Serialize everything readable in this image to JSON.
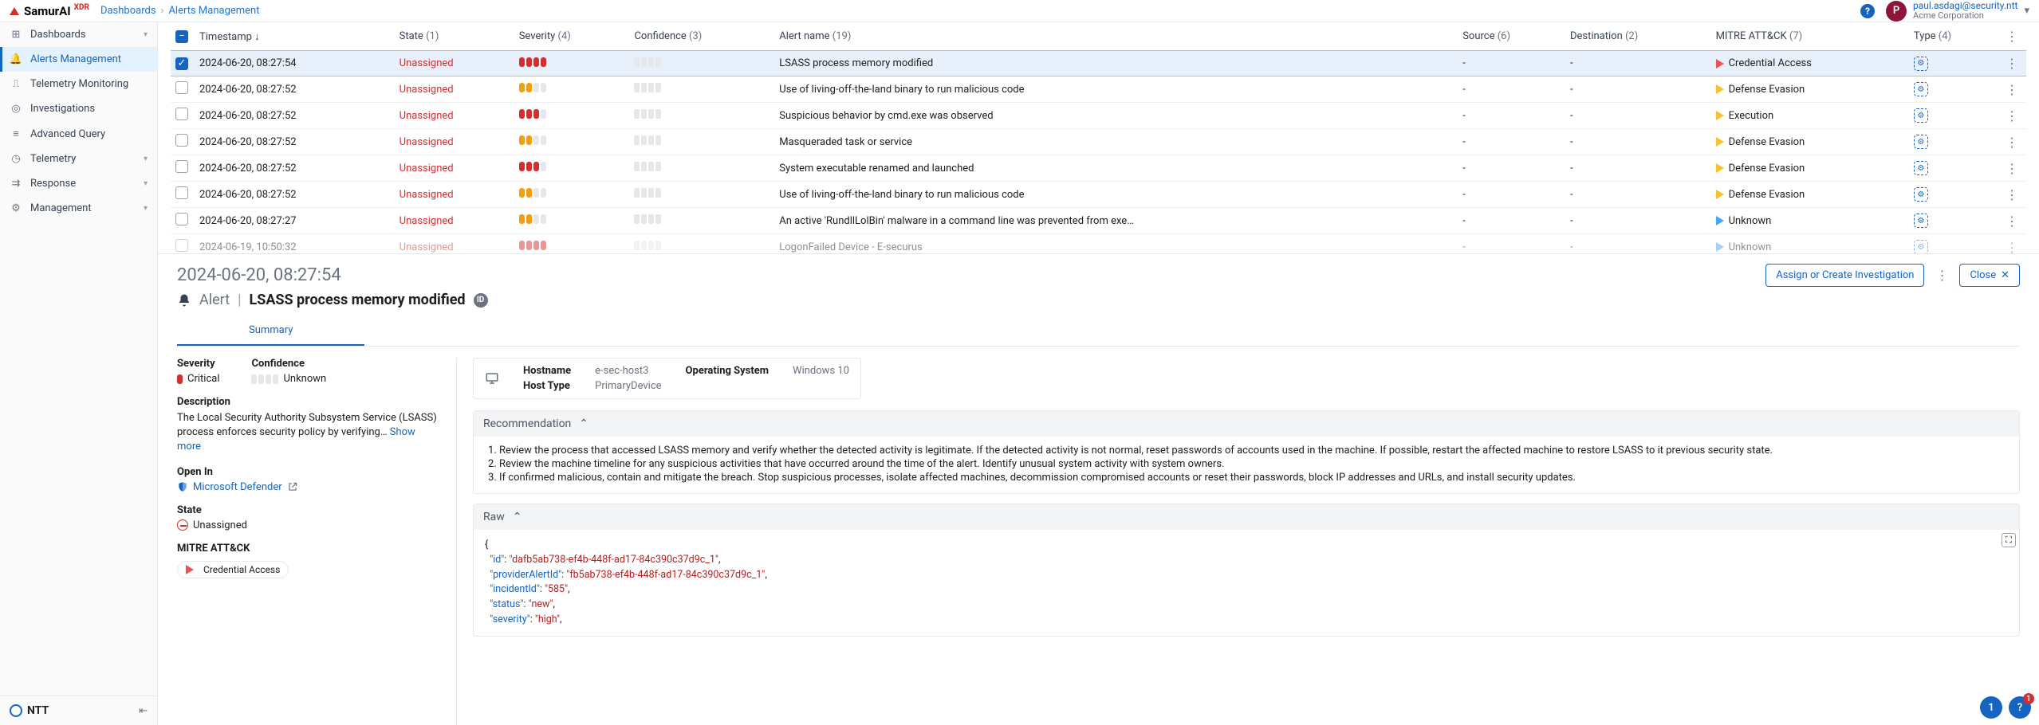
{
  "brand": {
    "name": "SamurAI",
    "suffix": "XDR"
  },
  "crumbs": [
    "Dashboards",
    "Alerts Management"
  ],
  "user": {
    "initial": "P",
    "email": "paul.asdagi@security.ntt",
    "org": "Acme Corporation"
  },
  "sidebar": [
    {
      "label": "Dashboards",
      "icon": "grid",
      "exp": true
    },
    {
      "label": "Alerts Management",
      "icon": "bell",
      "active": true
    },
    {
      "label": "Telemetry Monitoring",
      "icon": "pulse"
    },
    {
      "label": "Investigations",
      "icon": "target"
    },
    {
      "label": "Advanced Query",
      "icon": "db"
    },
    {
      "label": "Telemetry",
      "icon": "gauge",
      "exp": true
    },
    {
      "label": "Response",
      "icon": "flow",
      "exp": true
    },
    {
      "label": "Management",
      "icon": "gear",
      "exp": true
    }
  ],
  "footer_brand": "NTT",
  "columns": [
    {
      "label": "Timestamp",
      "count": null,
      "sort": true
    },
    {
      "label": "State",
      "count": 1
    },
    {
      "label": "Severity",
      "count": 4
    },
    {
      "label": "Confidence",
      "count": 3
    },
    {
      "label": "Alert name",
      "count": 19
    },
    {
      "label": "Source",
      "count": 6
    },
    {
      "label": "Destination",
      "count": 2
    },
    {
      "label": "MITRE ATT&CK",
      "count": 7
    },
    {
      "label": "Type",
      "count": 4
    }
  ],
  "rows": [
    {
      "sel": true,
      "ts": "2024-06-20, 08:27:54",
      "state": "Unassigned",
      "sev": 4,
      "sev_color": "r",
      "name": "LSASS process memory modified",
      "src": "-",
      "dst": "-",
      "mitre": "Credential Access",
      "mcolor": "ar-red"
    },
    {
      "ts": "2024-06-20, 08:27:52",
      "state": "Unassigned",
      "sev": 2,
      "sev_color": "o",
      "name": "Use of living-off-the-land binary to run malicious code",
      "src": "-",
      "dst": "-",
      "mitre": "Defense Evasion",
      "mcolor": "ar-yel"
    },
    {
      "ts": "2024-06-20, 08:27:52",
      "state": "Unassigned",
      "sev": 3,
      "sev_color": "r",
      "name": "Suspicious behavior by cmd.exe was observed",
      "src": "-",
      "dst": "-",
      "mitre": "Execution",
      "mcolor": "ar-yel"
    },
    {
      "ts": "2024-06-20, 08:27:52",
      "state": "Unassigned",
      "sev": 2,
      "sev_color": "o",
      "name": "Masqueraded task or service",
      "src": "-",
      "dst": "-",
      "mitre": "Defense Evasion",
      "mcolor": "ar-yel"
    },
    {
      "ts": "2024-06-20, 08:27:52",
      "state": "Unassigned",
      "sev": 3,
      "sev_color": "r",
      "name": "System executable renamed and launched",
      "src": "-",
      "dst": "-",
      "mitre": "Defense Evasion",
      "mcolor": "ar-yel"
    },
    {
      "ts": "2024-06-20, 08:27:52",
      "state": "Unassigned",
      "sev": 2,
      "sev_color": "o",
      "name": "Use of living-off-the-land binary to run malicious code",
      "src": "-",
      "dst": "-",
      "mitre": "Defense Evasion",
      "mcolor": "ar-yel"
    },
    {
      "ts": "2024-06-20, 08:27:27",
      "state": "Unassigned",
      "sev": 2,
      "sev_color": "o",
      "name": "An active 'RundllLolBin' malware in a command line was prevented from exe…",
      "src": "-",
      "dst": "-",
      "mitre": "Unknown",
      "mcolor": "ar-blue"
    },
    {
      "ts": "2024-06-19, 10:50:32",
      "state": "Unassigned",
      "sev": 4,
      "sev_color": "r",
      "name": "LogonFailed Device - E-securus",
      "src": "-",
      "dst": "-",
      "mitre": "Unknown",
      "mcolor": "ar-blue",
      "cut": true
    }
  ],
  "detail": {
    "timestamp": "2024-06-20, 08:27:54",
    "label": "Alert",
    "name": "LSASS process memory modified",
    "assign_btn": "Assign or Create Investigation",
    "close_btn": "Close",
    "tab": "Summary",
    "severity_label": "Severity",
    "severity_value": "Critical",
    "severity_level": 4,
    "severity_color": "r",
    "confidence_label": "Confidence",
    "confidence_value": "Unknown",
    "description_label": "Description",
    "description": "The Local Security Authority Subsystem Service (LSASS) process enforces security policy by verifying…",
    "showmore": "Show more",
    "openin_label": "Open In",
    "openin_link": "Microsoft Defender",
    "state_label": "State",
    "state_value": "Unassigned",
    "mitre_label": "MITRE ATT&CK",
    "mitre_value": "Credential Access",
    "host": {
      "Hostname": "e-sec-host3",
      "Host Type": "PrimaryDevice",
      "Operating System": "Windows 10"
    },
    "rec_label": "Recommendation",
    "recs": [
      "Review the process that accessed LSASS memory and verify whether the detected activity is legitimate. If the detected activity is not normal, reset passwords of accounts used in the machine. If possible, restart the affected machine to restore LSASS to it previous security state.",
      "Review the machine timeline for any suspicious activities that have occurred around the time of the alert. Identify unusual system activity with system owners.",
      "If confirmed malicious, contain and mitigate the breach. Stop suspicious processes, isolate affected machines, decommission compromised accounts or reset their passwords, block IP addresses and URLs, and install security updates."
    ],
    "raw_label": "Raw",
    "raw": {
      "id": "dafb5ab738-ef4b-448f-ad17-84c390c37d9c_1",
      "providerAlertId": "fb5ab738-ef4b-448f-ad17-84c390c37d9c_1",
      "incidentId": "585",
      "status": "new",
      "severity": "high"
    }
  },
  "float": {
    "count": "1",
    "help_badge": "1"
  },
  "colors": {
    "primary": "#1565c0",
    "danger": "#d32f2f",
    "warn": "#f59e0b",
    "muted": "#6b7280",
    "border": "#e5e7eb",
    "sel_bg": "#e8f1fb"
  }
}
